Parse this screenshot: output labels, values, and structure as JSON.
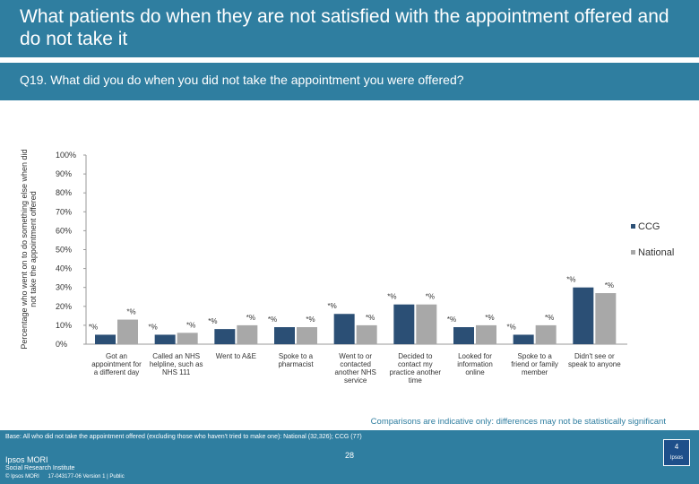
{
  "header": {
    "title": "What patients do when they are not satisfied with the appointment offered and do not take it"
  },
  "question": "Q19. What did you do when you did not take the appointment you were offered?",
  "chart_data": {
    "type": "bar",
    "ylabel_lines": [
      "Percentage who went on to do something else when did",
      "not take the appointment offered"
    ],
    "ylim": [
      0,
      100
    ],
    "yticks": [
      "0%",
      "10%",
      "20%",
      "30%",
      "40%",
      "50%",
      "60%",
      "70%",
      "80%",
      "90%",
      "100%"
    ],
    "categories": [
      [
        "Got an",
        "appointment for",
        "a different day"
      ],
      [
        "Called an NHS",
        "helpline, such as",
        "NHS 111"
      ],
      [
        "Went to A&E"
      ],
      [
        "Spoke to a",
        "pharmacist"
      ],
      [
        "Went to or",
        "contacted",
        "another NHS",
        "service"
      ],
      [
        "Decided to",
        "contact my",
        "practice another",
        "time"
      ],
      [
        "Looked for",
        "information",
        "online"
      ],
      [
        "Spoke to a",
        "friend or family",
        "member"
      ],
      [
        "Didn't see or",
        "speak to anyone"
      ]
    ],
    "series": [
      {
        "name": "CCG",
        "color": "#2b4f75",
        "values": [
          5,
          5,
          8,
          9,
          16,
          21,
          9,
          5,
          30
        ],
        "labels": [
          "*%",
          "*%",
          "*%",
          "*%",
          "*%",
          "*%",
          "*%",
          "*%",
          "*%"
        ]
      },
      {
        "name": "National",
        "color": "#a8a8a8",
        "values": [
          13,
          6,
          10,
          9,
          10,
          21,
          10,
          10,
          27
        ],
        "labels": [
          "*%",
          "*%",
          "*%",
          "*%",
          "*%",
          "*%",
          "*%",
          "*%",
          "*%"
        ]
      }
    ],
    "legend_position": "right",
    "note": "Comparisons are indicative only: differences may not be statistically significant"
  },
  "footer": {
    "base": "Base: All who did not take the appointment offered (excluding those who haven't tried to make one): National (32,326); CCG (77)",
    "page_number": "28",
    "logo_line1": "Ipsos MORI",
    "logo_line2": "Social Research Institute",
    "copyright": "© Ipsos MORI",
    "job_ref": "17-043177-06 Version 1 | Public",
    "badge_num": "4",
    "badge_brand": "Ipsos"
  }
}
